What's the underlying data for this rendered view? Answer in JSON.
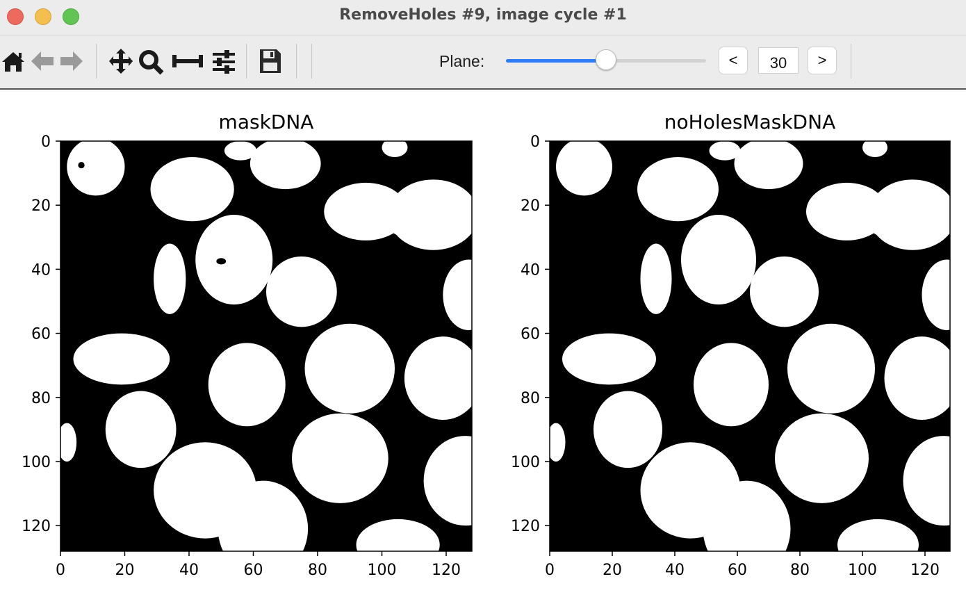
{
  "window": {
    "title": "RemoveHoles #9, image cycle #1"
  },
  "toolbar": {
    "icons": [
      "home-icon",
      "back-arrow-icon",
      "forward-arrow-icon",
      "pan-icon",
      "zoom-icon",
      "subplots-icon",
      "configure-icon",
      "save-icon"
    ],
    "plane_label": "Plane:",
    "plane_value": "30",
    "plane_prev_label": "<",
    "plane_next_label": ">",
    "slider_fraction": 0.5,
    "accent_color": "#2f7df6"
  },
  "chart_data": [
    {
      "type": "heatmap",
      "title": "maskDNA",
      "colormap": "binary (black = 0, white = 1)",
      "xlim": [
        0,
        128
      ],
      "ylim": [
        128,
        0
      ],
      "xticks": [
        0,
        20,
        40,
        60,
        80,
        100,
        120
      ],
      "yticks": [
        0,
        20,
        40,
        60,
        80,
        100,
        120
      ],
      "has_holes": true
    },
    {
      "type": "heatmap",
      "title": "noHolesMaskDNA",
      "colormap": "binary (black = 0, white = 1)",
      "xlim": [
        0,
        128
      ],
      "ylim": [
        128,
        0
      ],
      "xticks": [
        0,
        20,
        40,
        60,
        80,
        100,
        120
      ],
      "yticks": [
        0,
        20,
        40,
        60,
        80,
        100,
        120
      ],
      "has_holes": false
    }
  ],
  "nuclei": [
    {
      "cx": 11,
      "cy": 8,
      "rx": 9,
      "ry": 9
    },
    {
      "cx": 41,
      "cy": 15,
      "rx": 13,
      "ry": 10
    },
    {
      "cx": 70,
      "cy": 7,
      "rx": 11,
      "ry": 8
    },
    {
      "cx": 56,
      "cy": 3,
      "rx": 5,
      "ry": 3
    },
    {
      "cx": 104,
      "cy": 2,
      "rx": 4,
      "ry": 3
    },
    {
      "cx": 95,
      "cy": 22,
      "rx": 13,
      "ry": 9
    },
    {
      "cx": 116,
      "cy": 23,
      "rx": 14,
      "ry": 11
    },
    {
      "cx": 108,
      "cy": 26,
      "rx": 6,
      "ry": 4
    },
    {
      "cx": 34,
      "cy": 43,
      "rx": 5,
      "ry": 11
    },
    {
      "cx": 54,
      "cy": 37,
      "rx": 12,
      "ry": 14
    },
    {
      "cx": 75,
      "cy": 47,
      "rx": 11,
      "ry": 11
    },
    {
      "cx": 127,
      "cy": 48,
      "rx": 8,
      "ry": 11
    },
    {
      "cx": 19,
      "cy": 68,
      "rx": 15,
      "ry": 8
    },
    {
      "cx": 58,
      "cy": 76,
      "rx": 12,
      "ry": 13
    },
    {
      "cx": 90,
      "cy": 71,
      "rx": 14,
      "ry": 14
    },
    {
      "cx": 119,
      "cy": 74,
      "rx": 12,
      "ry": 13
    },
    {
      "cx": 2,
      "cy": 94,
      "rx": 3,
      "ry": 6
    },
    {
      "cx": 25,
      "cy": 90,
      "rx": 11,
      "ry": 12
    },
    {
      "cx": 87,
      "cy": 99,
      "rx": 15,
      "ry": 14
    },
    {
      "cx": 45,
      "cy": 109,
      "rx": 16,
      "ry": 15
    },
    {
      "cx": 63,
      "cy": 121,
      "rx": 14,
      "ry": 15
    },
    {
      "cx": 126,
      "cy": 106,
      "rx": 13,
      "ry": 14
    },
    {
      "cx": 105,
      "cy": 126,
      "rx": 13,
      "ry": 8
    }
  ],
  "holes": [
    {
      "cx": 6.5,
      "cy": 7.5,
      "rx": 1,
      "ry": 1
    },
    {
      "cx": 50,
      "cy": 37.5,
      "rx": 1.5,
      "ry": 1
    }
  ]
}
